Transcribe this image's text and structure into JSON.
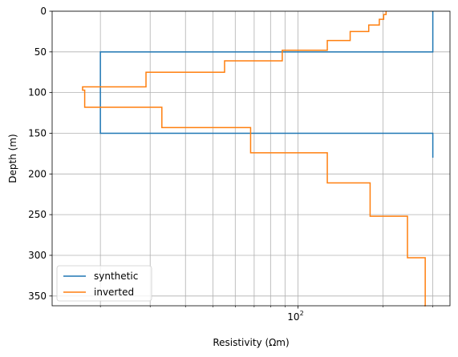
{
  "chart_data": {
    "type": "line",
    "xlabel": "Resistivity (Ωm)",
    "ylabel": "Depth (m)",
    "xscale": "log",
    "xlim": [
      13.5,
      345
    ],
    "ylim": [
      0,
      362
    ],
    "y_inverted": true,
    "grid": true,
    "x_major_ticks": [
      100
    ],
    "x_major_tick_labels": [
      "10^2"
    ],
    "x_minor_ticks": [
      20,
      30,
      40,
      50,
      60,
      70,
      80,
      90,
      200,
      300
    ],
    "y_ticks": [
      0,
      50,
      100,
      150,
      200,
      250,
      300,
      350
    ],
    "y_tick_labels": [
      "0",
      "50",
      "100",
      "150",
      "200",
      "250",
      "300",
      "350"
    ],
    "legend_position": "lower-left",
    "series": [
      {
        "name": "synthetic",
        "color": "#1f77b4",
        "x": [
          300,
          300,
          20,
          20,
          300,
          300
        ],
        "y": [
          0,
          50,
          50,
          150,
          150,
          180
        ]
      },
      {
        "name": "inverted",
        "color": "#ff7f0e",
        "x": [
          205,
          205,
          201,
          201,
          194,
          194,
          178,
          178,
          153,
          153,
          127,
          127,
          88,
          88,
          55,
          55,
          29,
          29,
          17.3,
          17.3,
          17.6,
          17.6,
          33,
          33,
          68,
          68,
          127,
          127,
          180,
          180,
          244,
          244,
          282,
          282,
          280,
          280
        ],
        "y": [
          0,
          4,
          4,
          10,
          10,
          17,
          17,
          25,
          25,
          36,
          36,
          48,
          48,
          61,
          61,
          75,
          75,
          93,
          93,
          97,
          97,
          118,
          118,
          143,
          143,
          174,
          174,
          211,
          211,
          252,
          252,
          303,
          303,
          362,
          362,
          362
        ]
      }
    ]
  }
}
